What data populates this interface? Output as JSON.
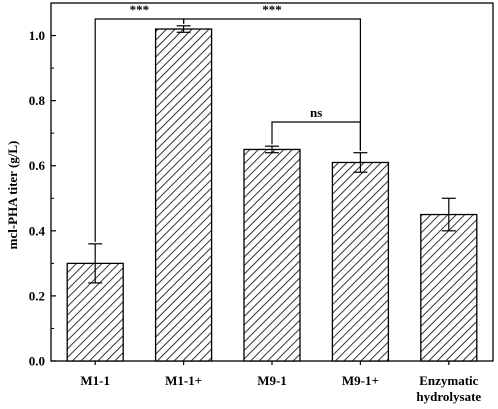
{
  "chart_data": {
    "type": "bar",
    "title": "",
    "xlabel": "",
    "ylabel": "mcl-PHA titer (g/L)",
    "ylim": [
      0,
      1.1
    ],
    "yticks": [
      0.0,
      0.2,
      0.4,
      0.6,
      0.8,
      1.0
    ],
    "ytick_labels": [
      "0.0",
      "0.2",
      "0.4",
      "0.6",
      "0.8",
      "1.0"
    ],
    "categories": [
      [
        "M1-1"
      ],
      [
        "M1-1+"
      ],
      [
        "M9-1"
      ],
      [
        "M9-1+"
      ],
      [
        "Enzymatic",
        "hydrolysate"
      ]
    ],
    "values": [
      0.3,
      1.02,
      0.65,
      0.61,
      0.45
    ],
    "errors": [
      0.06,
      0.01,
      0.01,
      0.03,
      0.05
    ],
    "fill_pattern": "diagonal-hatch",
    "grid": false,
    "significance": [
      {
        "from": 0,
        "to": 1,
        "label": "***"
      },
      {
        "from": 1,
        "to": 3,
        "label": "***"
      },
      {
        "from": 2,
        "to": 3,
        "label": "ns"
      }
    ]
  }
}
